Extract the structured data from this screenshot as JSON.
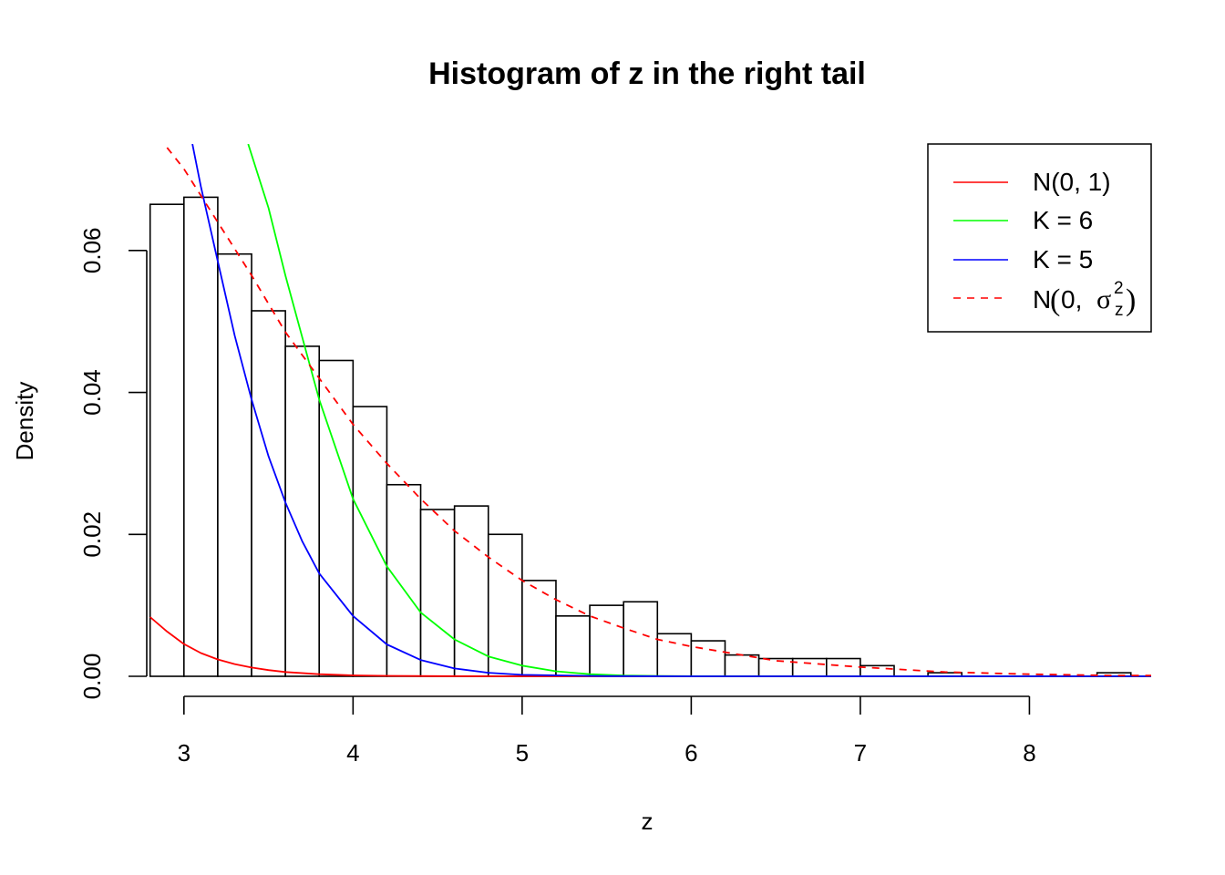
{
  "chart_data": {
    "type": "histogram",
    "title": "Histogram of z in the right tail",
    "xlabel": "z",
    "ylabel": "Density",
    "xlim": [
      2.78,
      8.72
    ],
    "ylim": [
      0,
      0.075
    ],
    "x_ticks": [
      3,
      4,
      5,
      6,
      7,
      8
    ],
    "x_tick_labels": [
      "3",
      "4",
      "5",
      "6",
      "7",
      "8"
    ],
    "y_ticks": [
      0.0,
      0.02,
      0.04,
      0.06
    ],
    "y_tick_labels": [
      "0.00",
      "0.02",
      "0.04",
      "0.06"
    ],
    "histogram": {
      "color": "#000000",
      "fill": "#ffffff",
      "bins": [
        {
          "x0": 2.8,
          "x1": 3.0,
          "density": 0.0665
        },
        {
          "x0": 3.0,
          "x1": 3.2,
          "density": 0.0675
        },
        {
          "x0": 3.2,
          "x1": 3.4,
          "density": 0.0595
        },
        {
          "x0": 3.4,
          "x1": 3.6,
          "density": 0.0515
        },
        {
          "x0": 3.6,
          "x1": 3.8,
          "density": 0.0465
        },
        {
          "x0": 3.8,
          "x1": 4.0,
          "density": 0.0445
        },
        {
          "x0": 4.0,
          "x1": 4.2,
          "density": 0.038
        },
        {
          "x0": 4.2,
          "x1": 4.4,
          "density": 0.027
        },
        {
          "x0": 4.4,
          "x1": 4.6,
          "density": 0.0235
        },
        {
          "x0": 4.6,
          "x1": 4.8,
          "density": 0.024
        },
        {
          "x0": 4.8,
          "x1": 5.0,
          "density": 0.02
        },
        {
          "x0": 5.0,
          "x1": 5.2,
          "density": 0.0135
        },
        {
          "x0": 5.2,
          "x1": 5.4,
          "density": 0.0085
        },
        {
          "x0": 5.4,
          "x1": 5.6,
          "density": 0.01
        },
        {
          "x0": 5.6,
          "x1": 5.8,
          "density": 0.0105
        },
        {
          "x0": 5.8,
          "x1": 6.0,
          "density": 0.006
        },
        {
          "x0": 6.0,
          "x1": 6.2,
          "density": 0.005
        },
        {
          "x0": 6.2,
          "x1": 6.4,
          "density": 0.003
        },
        {
          "x0": 6.4,
          "x1": 6.6,
          "density": 0.0025
        },
        {
          "x0": 6.6,
          "x1": 6.8,
          "density": 0.0025
        },
        {
          "x0": 6.8,
          "x1": 7.0,
          "density": 0.0025
        },
        {
          "x0": 7.0,
          "x1": 7.2,
          "density": 0.0015
        },
        {
          "x0": 7.2,
          "x1": 7.4,
          "density": 0.0
        },
        {
          "x0": 7.4,
          "x1": 7.6,
          "density": 0.0005
        },
        {
          "x0": 7.6,
          "x1": 7.8,
          "density": 0.0
        },
        {
          "x0": 7.8,
          "x1": 8.0,
          "density": 0.0
        },
        {
          "x0": 8.0,
          "x1": 8.2,
          "density": 0.0
        },
        {
          "x0": 8.2,
          "x1": 8.4,
          "density": 0.0
        },
        {
          "x0": 8.4,
          "x1": 8.6,
          "density": 0.0005
        }
      ]
    },
    "series": [
      {
        "name": "N(0, 1)",
        "key": "norm",
        "color": "#ff0000",
        "dash": "solid",
        "x": [
          2.8,
          2.9,
          3.0,
          3.1,
          3.2,
          3.3,
          3.4,
          3.5,
          3.6,
          3.8,
          4.0,
          4.2,
          4.5,
          5.0,
          6.0,
          7.0,
          8.0,
          8.72
        ],
        "y": [
          0.00835,
          0.00631,
          0.00454,
          0.00327,
          0.00238,
          0.00172,
          0.00123,
          0.00087,
          0.00061,
          0.00029,
          0.00013,
          6e-05,
          2e-05,
          1e-06,
          0.0,
          0.0,
          0.0,
          0.0
        ]
      },
      {
        "name": "K = 6",
        "key": "k6",
        "color": "#00ff00",
        "dash": "solid",
        "x": [
          3.38,
          3.5,
          3.6,
          3.8,
          4.0,
          4.2,
          4.4,
          4.6,
          4.8,
          5.0,
          5.2,
          5.4,
          5.6,
          5.8,
          6.0,
          6.5,
          7.0,
          8.0,
          8.72
        ],
        "y": [
          0.075,
          0.066,
          0.0565,
          0.039,
          0.025,
          0.0155,
          0.009,
          0.0052,
          0.0028,
          0.0015,
          0.0007,
          0.0003,
          0.0001,
          5e-05,
          1e-05,
          0.0,
          0.0,
          0.0,
          0.0
        ]
      },
      {
        "name": "K = 5",
        "key": "k5",
        "color": "#0000ff",
        "dash": "solid",
        "x": [
          3.05,
          3.1,
          3.2,
          3.3,
          3.4,
          3.5,
          3.6,
          3.7,
          3.8,
          4.0,
          4.2,
          4.4,
          4.6,
          4.8,
          5.0,
          5.5,
          6.0,
          7.0,
          8.0,
          8.72
        ],
        "y": [
          0.075,
          0.069,
          0.0585,
          0.048,
          0.039,
          0.031,
          0.0245,
          0.019,
          0.0145,
          0.0085,
          0.0045,
          0.0023,
          0.0011,
          0.0005,
          0.0002,
          2e-05,
          0.0,
          0.0,
          0.0,
          0.0
        ]
      },
      {
        "name": "N(0, σ_z^2)",
        "key": "normsig",
        "color": "#ff0000",
        "dash": "dashed",
        "x": [
          2.9,
          3.0,
          3.2,
          3.4,
          3.6,
          3.8,
          4.0,
          4.2,
          4.4,
          4.6,
          4.8,
          5.0,
          5.2,
          5.4,
          5.6,
          5.8,
          6.0,
          6.5,
          7.0,
          7.5,
          8.0,
          8.5,
          8.72
        ],
        "y": [
          0.0745,
          0.0715,
          0.064,
          0.0565,
          0.0485,
          0.042,
          0.0355,
          0.03,
          0.025,
          0.0205,
          0.0168,
          0.0135,
          0.0108,
          0.0085,
          0.0068,
          0.0052,
          0.0042,
          0.0022,
          0.0013,
          0.0006,
          0.0003,
          0.0001,
          0.0001
        ]
      }
    ],
    "legend": {
      "position": "top-right",
      "entries": [
        {
          "text": "N(0, 1)"
        },
        {
          "text": "K = 6"
        },
        {
          "text": "K = 5"
        },
        {
          "text_prefix": "N",
          "open_paren": "(",
          "zero": "0,",
          "sigma": "σ",
          "subscript": "z",
          "superscript": "2",
          "close_paren": ")"
        }
      ]
    }
  }
}
